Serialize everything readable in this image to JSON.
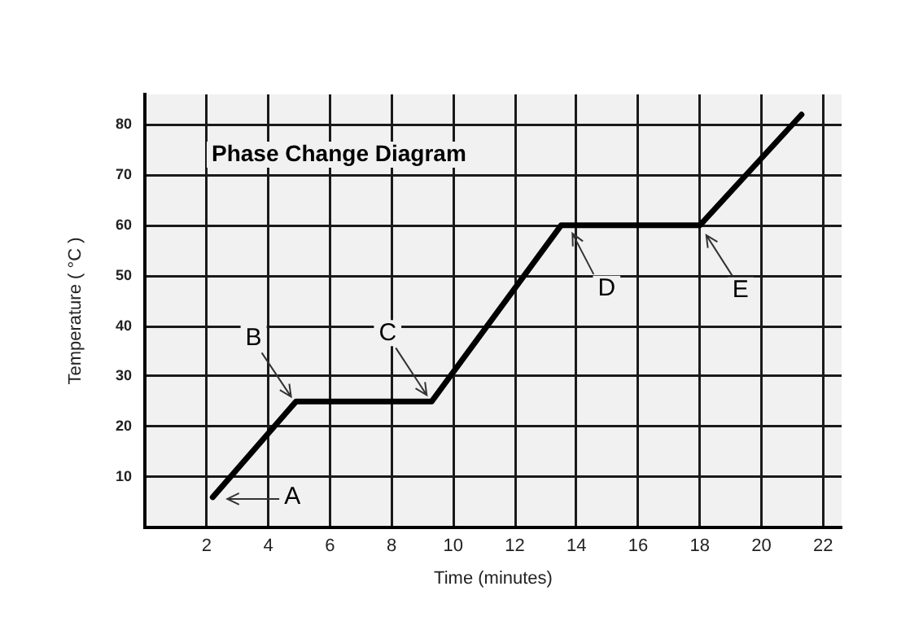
{
  "chart_data": {
    "type": "line",
    "title": "Phase Change Diagram",
    "xlabel": "Time (minutes)",
    "ylabel": "Temperature ( °C )",
    "x": [
      2.2,
      4.9,
      9.3,
      13.5,
      18,
      21.3
    ],
    "series": [
      {
        "color": "#000000",
        "values": [
          6,
          25,
          25,
          60,
          60,
          82
        ]
      }
    ],
    "xlim": [
      0,
      22.6
    ],
    "ylim": [
      0,
      86
    ],
    "xticks": [
      2,
      4,
      6,
      8,
      10,
      12,
      14,
      16,
      18,
      20,
      22
    ],
    "yticks": [
      10,
      20,
      30,
      40,
      50,
      60,
      70,
      80
    ],
    "grid": true,
    "annotations": [
      {
        "text": "A",
        "x": 2.2,
        "y": 6
      },
      {
        "text": "B",
        "x": 4.9,
        "y": 25
      },
      {
        "text": "C",
        "x": 9.3,
        "y": 25
      },
      {
        "text": "D",
        "x": 13.5,
        "y": 60
      },
      {
        "text": "E",
        "x": 18,
        "y": 60
      }
    ]
  }
}
